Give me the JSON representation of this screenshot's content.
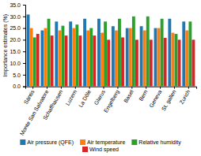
{
  "chart_data": {
    "type": "bar",
    "ylabel": "Importance estimates (%)",
    "categories": [
      "Säntis",
      "Monte San Salvatore",
      "Schaffhausen",
      "Luzern",
      "La Dôle",
      "Glarus",
      "Engelberg",
      "Basel",
      "Bern",
      "Geneva",
      "St. gallen",
      "Zurich"
    ],
    "series": [
      {
        "name": "Air pressure (QFE)",
        "values": [
          30.8,
          24.0,
          27.8,
          27.8,
          29.0,
          29.0,
          25.8,
          25.0,
          25.8,
          25.0,
          29.0,
          27.8
        ]
      },
      {
        "name": "Air temperature",
        "values": [
          25.0,
          25.0,
          24.0,
          25.0,
          24.0,
          23.0,
          24.0,
          25.0,
          24.0,
          25.0,
          23.0,
          24.0
        ]
      },
      {
        "name": "Relative humidity",
        "values": [
          21.0,
          29.0,
          26.0,
          26.5,
          25.0,
          27.8,
          29.0,
          30.0,
          30.0,
          29.0,
          22.5,
          27.8
        ]
      },
      {
        "name": "Wind speed",
        "values": [
          22.5,
          21.8,
          21.8,
          21.8,
          21.8,
          20.0,
          21.0,
          20.0,
          20.0,
          20.8,
          20.0,
          20.0
        ]
      }
    ],
    "ylim": [
      0.0,
      35.0
    ],
    "yticks": [
      {
        "value": 0.0,
        "label": "0.0"
      },
      {
        "value": 5.0,
        "label": "5.0"
      },
      {
        "value": 10.0,
        "label": "10.0"
      },
      {
        "value": 15.0,
        "label": "15.0"
      },
      {
        "value": 20.0,
        "label": "20.0"
      },
      {
        "value": 25.0,
        "label": "25.0"
      },
      {
        "value": 30.0,
        "label": "30.0"
      },
      {
        "value": 35.0,
        "label": "35.0"
      }
    ],
    "grid": false,
    "legend": "bottom"
  }
}
